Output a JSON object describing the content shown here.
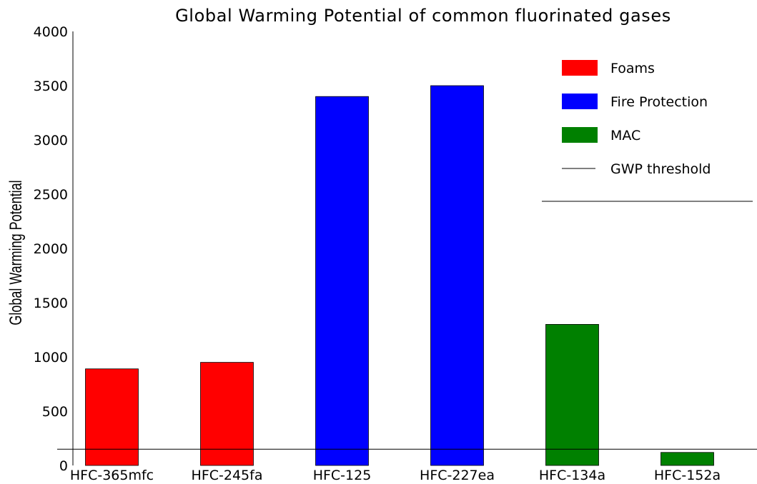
{
  "chart_data": {
    "type": "bar",
    "title": "Global Warming Potential of common fluorinated gases",
    "xlabel": "",
    "ylabel": "Global Warming Potential",
    "ylim": [
      0,
      4000
    ],
    "yticks": [
      "0",
      "500",
      "1000",
      "1500",
      "2000",
      "2500",
      "3000",
      "3500",
      "4000"
    ],
    "ytick_values": [
      0,
      500,
      1000,
      1500,
      2000,
      2500,
      3000,
      3500,
      4000
    ],
    "categories": [
      "HFC-365mfc",
      "HFC-245fa",
      "HFC-125",
      "HFC-227ea",
      "HFC-134a",
      "HFC-152a"
    ],
    "values": [
      890,
      950,
      3400,
      3500,
      1300,
      120
    ],
    "bar_groups": [
      "Foams",
      "Foams",
      "Fire Protection",
      "Fire Protection",
      "MAC",
      "MAC"
    ],
    "threshold": {
      "name": "GWP threshold",
      "value": 150
    },
    "grid": false,
    "legend": {
      "placement": "top-right",
      "items": [
        {
          "label": "Foams",
          "color": "#ff0000",
          "kind": "box"
        },
        {
          "label": "Fire Protection",
          "color": "#0000ff",
          "kind": "box"
        },
        {
          "label": "MAC",
          "color": "#008000",
          "kind": "box"
        },
        {
          "label": "GWP threshold",
          "color": "#000000",
          "kind": "line"
        }
      ]
    },
    "colors": {
      "Foams": "#ff0000",
      "Fire Protection": "#0000ff",
      "MAC": "#008000"
    }
  }
}
